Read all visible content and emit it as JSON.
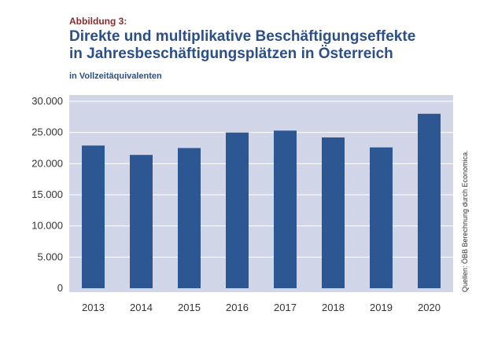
{
  "figure_label": "Abbildung 3:",
  "title_line1": "Direkte und multiplikative Beschäftigungseffekte",
  "title_line2": "in Jahresbeschäftigungsplätzen in Österreich",
  "subtitle": "in Vollzeitäquivalenten",
  "source": "Quellen: ÖBB Berechnung durch Economica.",
  "colors": {
    "bar": "#2d5793",
    "plot_background": "#d0d6e8",
    "grid": "#ffffff",
    "title": "#2c4f86",
    "figure_label": "#8b2a2a"
  },
  "chart_data": {
    "type": "bar",
    "categories": [
      "2013",
      "2014",
      "2015",
      "2016",
      "2017",
      "2018",
      "2019",
      "2020"
    ],
    "values": [
      22900,
      21400,
      22500,
      25000,
      25300,
      24200,
      22600,
      28000
    ],
    "ylim": [
      0,
      30000
    ],
    "yticks": [
      0,
      5000,
      10000,
      15000,
      20000,
      25000,
      30000
    ],
    "ytick_labels": [
      "0",
      "5.000",
      "10.000",
      "15.000",
      "20.000",
      "25.000",
      "30.000"
    ],
    "grid": true,
    "legend": "none"
  }
}
